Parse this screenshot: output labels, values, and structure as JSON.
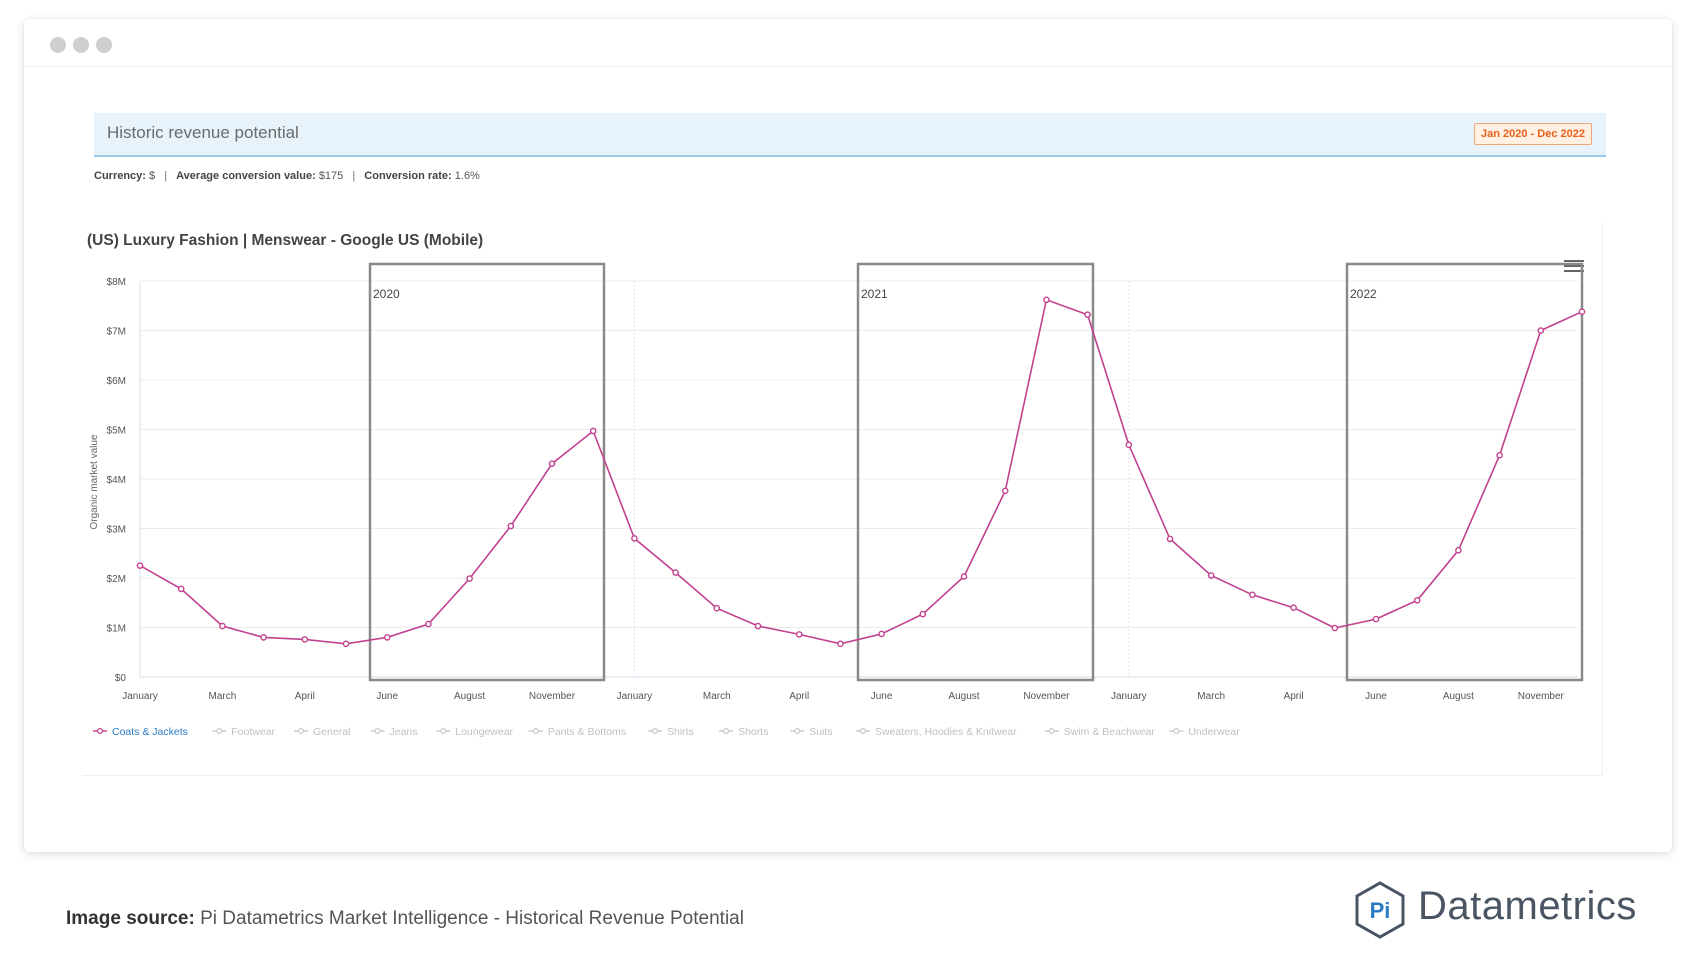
{
  "header": {
    "title": "Historic revenue potential",
    "date_range": "Jan 2020 - Dec 2022"
  },
  "meta": {
    "currency_label": "Currency:",
    "currency_value": "$",
    "avg_label": "Average conversion value:",
    "avg_value": "$175",
    "rate_label": "Conversion rate:",
    "rate_value": "1.6%"
  },
  "chart_data": {
    "type": "line",
    "title": "(US) Luxury Fashion | Menswear - Google US (Mobile)",
    "ylabel": "Organic market value",
    "xlabel": "",
    "y_ticks": [
      "$0",
      "$1M",
      "$2M",
      "$3M",
      "$4M",
      "$5M",
      "$6M",
      "$7M",
      "$8M"
    ],
    "ylim": [
      0,
      8
    ],
    "x_tick_labels": [
      "January",
      "March",
      "April",
      "June",
      "August",
      "November",
      "January",
      "March",
      "April",
      "June",
      "August",
      "November",
      "January",
      "March",
      "April",
      "June",
      "August",
      "November"
    ],
    "year_annotations": [
      "2020",
      "2021",
      "2022"
    ],
    "series": [
      {
        "name": "Coats & Jackets",
        "active": true,
        "color": "#c2418f",
        "values": [
          2.25,
          1.78,
          1.03,
          0.8,
          0.76,
          0.67,
          0.8,
          1.07,
          1.99,
          3.05,
          4.31,
          4.97,
          2.8,
          2.11,
          1.39,
          1.03,
          0.86,
          0.67,
          0.87,
          1.27,
          2.03,
          3.76,
          7.62,
          7.32,
          4.69,
          2.79,
          2.05,
          1.66,
          1.4,
          0.99,
          1.17,
          1.55,
          2.56,
          4.48,
          7.0,
          7.38
        ]
      },
      {
        "name": "Footwear",
        "active": false
      },
      {
        "name": "General",
        "active": false
      },
      {
        "name": "Jeans",
        "active": false
      },
      {
        "name": "Loungewear",
        "active": false
      },
      {
        "name": "Pants & Bottoms",
        "active": false
      },
      {
        "name": "Shirts",
        "active": false
      },
      {
        "name": "Shorts",
        "active": false
      },
      {
        "name": "Suits",
        "active": false
      },
      {
        "name": "Sweaters, Hoodies & Knitwear",
        "active": false
      },
      {
        "name": "Swim & Beachwear",
        "active": false
      },
      {
        "name": "Underwear",
        "active": false
      }
    ],
    "grid": true,
    "legend_position": "bottom-left"
  },
  "colors": {
    "series_active": "#c2418f",
    "legend_active_text": "#2a7bc4",
    "legend_inactive": "#c8c8c8",
    "highlight_box": "#8a8a8a",
    "date_badge": "#e8601c"
  },
  "footer": {
    "source_label": "Image source:",
    "source_text": "Pi Datametrics Market Intelligence - Historical Revenue Potential",
    "logo_mark": "Pi",
    "logo_text": "Datametrics"
  }
}
